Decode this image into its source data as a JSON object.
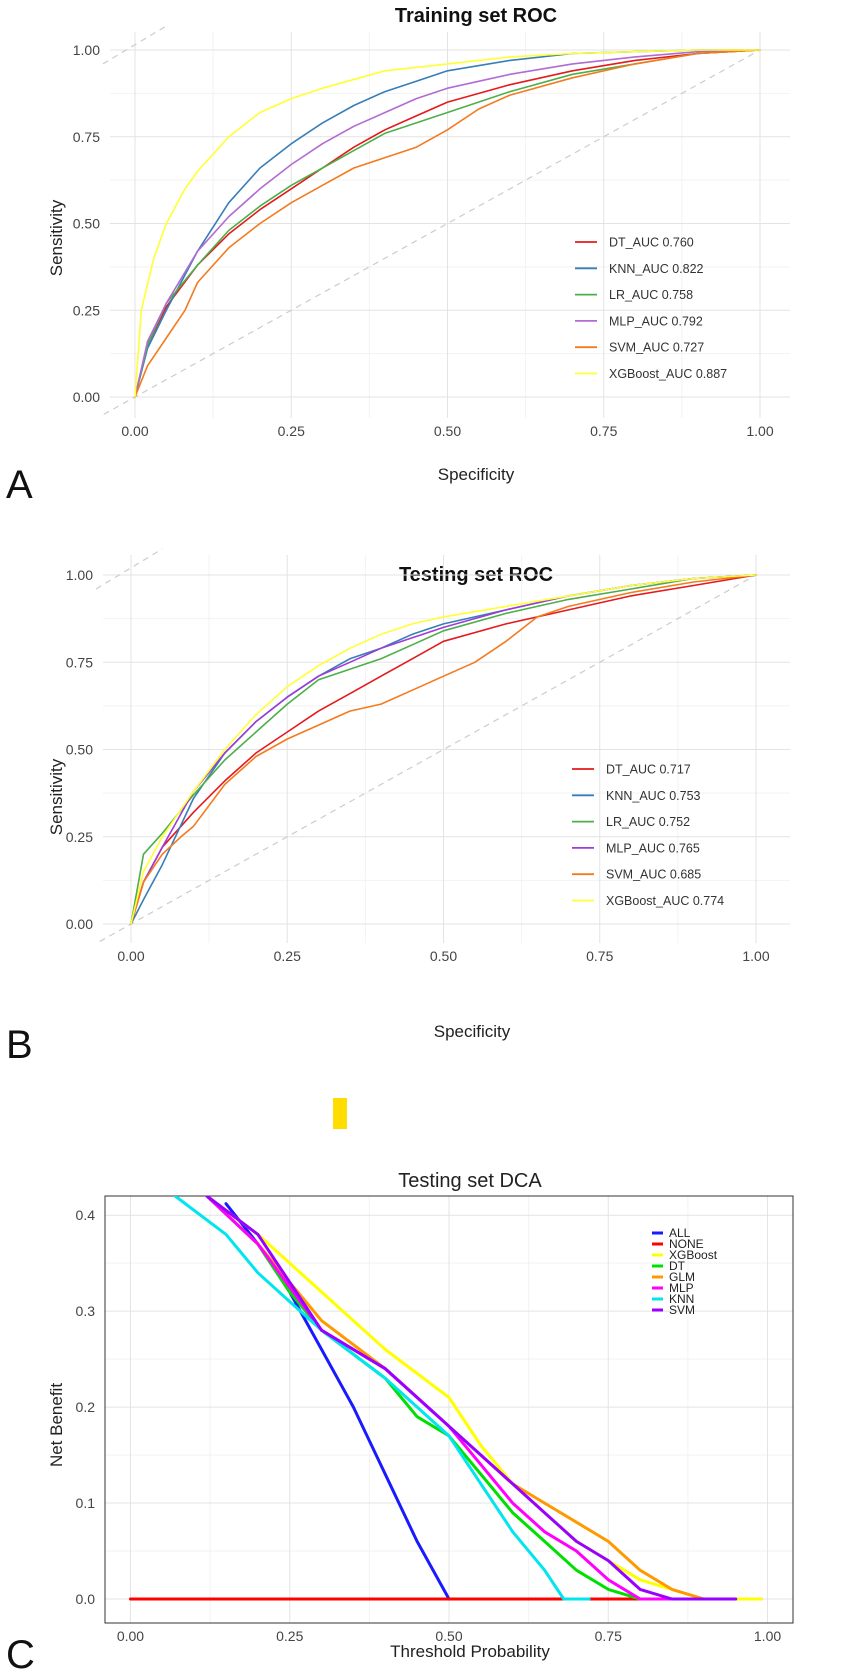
{
  "panels": [
    {
      "letter": "A"
    },
    {
      "letter": "B"
    },
    {
      "letter": "C"
    }
  ],
  "chart_data": [
    {
      "type": "line",
      "title": "Training set ROC",
      "xlabel": "Specificity",
      "ylabel": "Sensitivity",
      "xlim": [
        0,
        1
      ],
      "ylim": [
        0,
        1
      ],
      "xticks": [
        "0.00",
        "0.25",
        "0.50",
        "0.75",
        "1.00"
      ],
      "yticks": [
        "0.00",
        "0.25",
        "0.50",
        "0.75",
        "1.00"
      ],
      "grid": true,
      "legend_position": "bottom-right",
      "diagonal": true,
      "series": [
        {
          "name": "DT_AUC 0.760",
          "color": "#e41a1c",
          "x": [
            0,
            0.02,
            0.05,
            0.1,
            0.15,
            0.2,
            0.25,
            0.3,
            0.35,
            0.4,
            0.45,
            0.5,
            0.6,
            0.7,
            0.8,
            0.9,
            1.0
          ],
          "y": [
            0,
            0.15,
            0.26,
            0.38,
            0.47,
            0.54,
            0.6,
            0.66,
            0.72,
            0.77,
            0.81,
            0.85,
            0.9,
            0.94,
            0.97,
            0.99,
            1.0
          ]
        },
        {
          "name": "KNN_AUC 0.822",
          "color": "#377eb8",
          "x": [
            0,
            0.02,
            0.05,
            0.1,
            0.15,
            0.2,
            0.25,
            0.3,
            0.35,
            0.4,
            0.45,
            0.5,
            0.6,
            0.7,
            0.8,
            0.9,
            1.0
          ],
          "y": [
            0,
            0.14,
            0.25,
            0.42,
            0.56,
            0.66,
            0.73,
            0.79,
            0.84,
            0.88,
            0.91,
            0.94,
            0.97,
            0.99,
            0.995,
            1.0,
            1.0
          ]
        },
        {
          "name": "LR_AUC 0.758",
          "color": "#4daf4a",
          "x": [
            0,
            0.02,
            0.05,
            0.1,
            0.15,
            0.2,
            0.25,
            0.3,
            0.35,
            0.4,
            0.45,
            0.5,
            0.6,
            0.7,
            0.8,
            0.9,
            1.0
          ],
          "y": [
            0,
            0.15,
            0.27,
            0.38,
            0.48,
            0.55,
            0.61,
            0.66,
            0.71,
            0.76,
            0.79,
            0.82,
            0.88,
            0.93,
            0.96,
            0.99,
            1.0
          ]
        },
        {
          "name": "MLP_AUC 0.792",
          "color": "#b26bd1",
          "x": [
            0,
            0.02,
            0.05,
            0.1,
            0.15,
            0.2,
            0.25,
            0.3,
            0.35,
            0.4,
            0.45,
            0.5,
            0.6,
            0.7,
            0.8,
            0.9,
            1.0
          ],
          "y": [
            0,
            0.16,
            0.27,
            0.42,
            0.52,
            0.6,
            0.67,
            0.73,
            0.78,
            0.82,
            0.86,
            0.89,
            0.93,
            0.96,
            0.98,
            0.995,
            1.0
          ]
        },
        {
          "name": "SVM_AUC 0.727",
          "color": "#f47a1f",
          "x": [
            0,
            0.02,
            0.05,
            0.08,
            0.1,
            0.15,
            0.2,
            0.25,
            0.3,
            0.35,
            0.4,
            0.45,
            0.5,
            0.55,
            0.6,
            0.7,
            0.8,
            0.9,
            1.0
          ],
          "y": [
            0,
            0.09,
            0.17,
            0.25,
            0.33,
            0.43,
            0.5,
            0.56,
            0.61,
            0.66,
            0.69,
            0.72,
            0.77,
            0.83,
            0.87,
            0.92,
            0.96,
            0.99,
            1.0
          ]
        },
        {
          "name": "XGBoost_AUC 0.887",
          "color": "#ffff33",
          "x": [
            0,
            0.01,
            0.03,
            0.05,
            0.08,
            0.1,
            0.15,
            0.2,
            0.25,
            0.3,
            0.4,
            0.5,
            0.6,
            0.7,
            0.8,
            0.9,
            1.0
          ],
          "y": [
            0,
            0.25,
            0.4,
            0.5,
            0.6,
            0.65,
            0.75,
            0.82,
            0.86,
            0.89,
            0.94,
            0.96,
            0.98,
            0.99,
            0.995,
            1.0,
            1.0
          ]
        }
      ]
    },
    {
      "type": "line",
      "title": "Testing set ROC",
      "xlabel": "Specificity",
      "ylabel": "Sensitivity",
      "xlim": [
        0,
        1
      ],
      "ylim": [
        0,
        1
      ],
      "xticks": [
        "0.00",
        "0.25",
        "0.50",
        "0.75",
        "1.00"
      ],
      "yticks": [
        "0.00",
        "0.25",
        "0.50",
        "0.75",
        "1.00"
      ],
      "grid": true,
      "legend_position": "bottom-right",
      "diagonal": true,
      "series": [
        {
          "name": "DT_AUC 0.717",
          "color": "#e41a1c",
          "x": [
            0,
            0.02,
            0.05,
            0.1,
            0.15,
            0.2,
            0.25,
            0.3,
            0.35,
            0.4,
            0.45,
            0.5,
            0.6,
            0.7,
            0.8,
            0.9,
            1.0
          ],
          "y": [
            0,
            0.12,
            0.22,
            0.32,
            0.41,
            0.49,
            0.55,
            0.61,
            0.66,
            0.71,
            0.76,
            0.81,
            0.86,
            0.9,
            0.94,
            0.97,
            1.0
          ]
        },
        {
          "name": "KNN_AUC 0.753",
          "color": "#377eb8",
          "x": [
            0,
            0.02,
            0.05,
            0.1,
            0.15,
            0.2,
            0.25,
            0.3,
            0.35,
            0.4,
            0.45,
            0.5,
            0.6,
            0.7,
            0.8,
            0.9,
            1.0
          ],
          "y": [
            0,
            0.07,
            0.17,
            0.36,
            0.49,
            0.58,
            0.65,
            0.71,
            0.76,
            0.79,
            0.83,
            0.86,
            0.9,
            0.94,
            0.97,
            0.99,
            1.0
          ]
        },
        {
          "name": "LR_AUC 0.752",
          "color": "#4daf4a",
          "x": [
            0,
            0.02,
            0.05,
            0.1,
            0.15,
            0.2,
            0.25,
            0.3,
            0.35,
            0.4,
            0.45,
            0.5,
            0.6,
            0.7,
            0.8,
            0.9,
            1.0
          ],
          "y": [
            0,
            0.2,
            0.26,
            0.37,
            0.47,
            0.55,
            0.63,
            0.7,
            0.73,
            0.76,
            0.8,
            0.84,
            0.89,
            0.93,
            0.96,
            0.99,
            1.0
          ]
        },
        {
          "name": "MLP_AUC 0.765",
          "color": "#9d3cd6",
          "x": [
            0,
            0.02,
            0.05,
            0.1,
            0.15,
            0.2,
            0.25,
            0.3,
            0.35,
            0.4,
            0.45,
            0.5,
            0.6,
            0.7,
            0.8,
            0.9,
            1.0
          ],
          "y": [
            0,
            0.12,
            0.22,
            0.38,
            0.49,
            0.58,
            0.65,
            0.71,
            0.75,
            0.79,
            0.82,
            0.85,
            0.9,
            0.94,
            0.97,
            0.99,
            1.0
          ]
        },
        {
          "name": "SVM_AUC 0.685",
          "color": "#f47a1f",
          "x": [
            0,
            0.02,
            0.05,
            0.08,
            0.1,
            0.15,
            0.2,
            0.25,
            0.3,
            0.35,
            0.4,
            0.45,
            0.5,
            0.55,
            0.6,
            0.65,
            0.7,
            0.8,
            0.9,
            1.0
          ],
          "y": [
            0,
            0.12,
            0.2,
            0.25,
            0.28,
            0.4,
            0.48,
            0.53,
            0.57,
            0.61,
            0.63,
            0.67,
            0.71,
            0.75,
            0.81,
            0.88,
            0.91,
            0.95,
            0.98,
            1.0
          ]
        },
        {
          "name": "XGBoost_AUC 0.774",
          "color": "#ffff33",
          "x": [
            0,
            0.02,
            0.05,
            0.1,
            0.15,
            0.2,
            0.25,
            0.3,
            0.35,
            0.4,
            0.45,
            0.5,
            0.6,
            0.7,
            0.8,
            0.9,
            1.0
          ],
          "y": [
            0,
            0.15,
            0.25,
            0.38,
            0.5,
            0.6,
            0.68,
            0.74,
            0.79,
            0.83,
            0.86,
            0.88,
            0.91,
            0.94,
            0.97,
            0.99,
            1.0
          ]
        }
      ]
    },
    {
      "type": "line",
      "title": "Testing set DCA",
      "xlabel": "Threshold Probability",
      "ylabel": "Net Benefit",
      "xlim": [
        -0.04,
        1.04
      ],
      "ylim": [
        -0.025,
        0.42
      ],
      "xticks": [
        "0.00",
        "0.25",
        "0.50",
        "0.75",
        "1.00"
      ],
      "yticks": [
        "0.0",
        "0.1",
        "0.2",
        "0.3",
        "0.4"
      ],
      "grid": true,
      "legend_position": "top-right",
      "series": [
        {
          "name": "ALL",
          "color": "#1a1aff",
          "x": [
            0.15,
            0.2,
            0.25,
            0.3,
            0.35,
            0.4,
            0.45,
            0.5
          ],
          "y": [
            0.412,
            0.37,
            0.32,
            0.26,
            0.2,
            0.13,
            0.06,
            0
          ]
        },
        {
          "name": "NONE",
          "color": "#ff0000",
          "x": [
            0,
            0.99
          ],
          "y": [
            0,
            0
          ]
        },
        {
          "name": "XGBoost",
          "color": "#ffff00",
          "x": [
            0.12,
            0.2,
            0.3,
            0.4,
            0.5,
            0.55,
            0.6,
            0.65,
            0.7,
            0.75,
            0.8,
            0.85,
            0.9,
            0.95,
            0.99
          ],
          "y": [
            0.42,
            0.38,
            0.32,
            0.26,
            0.21,
            0.16,
            0.12,
            0.09,
            0.06,
            0.04,
            0.02,
            0.01,
            0.0,
            0.0,
            0.0
          ]
        },
        {
          "name": "DT",
          "color": "#00e000",
          "x": [
            0.12,
            0.2,
            0.25,
            0.3,
            0.4,
            0.45,
            0.5,
            0.55,
            0.6,
            0.65,
            0.7,
            0.75,
            0.8,
            0.85,
            0.9,
            0.95
          ],
          "y": [
            0.42,
            0.37,
            0.32,
            0.28,
            0.23,
            0.19,
            0.17,
            0.13,
            0.09,
            0.06,
            0.03,
            0.01,
            0.0,
            0.0,
            0.0,
            0.0
          ]
        },
        {
          "name": "GLM",
          "color": "#ff9900",
          "x": [
            0.12,
            0.2,
            0.3,
            0.4,
            0.5,
            0.55,
            0.6,
            0.65,
            0.7,
            0.75,
            0.8,
            0.85,
            0.9,
            0.95
          ],
          "y": [
            0.42,
            0.37,
            0.29,
            0.24,
            0.18,
            0.15,
            0.12,
            0.1,
            0.08,
            0.06,
            0.03,
            0.01,
            0.0,
            0.0
          ]
        },
        {
          "name": "MLP",
          "color": "#ff00ff",
          "x": [
            0.12,
            0.2,
            0.3,
            0.4,
            0.5,
            0.55,
            0.6,
            0.65,
            0.7,
            0.75,
            0.8,
            0.85,
            0.9
          ],
          "y": [
            0.42,
            0.37,
            0.28,
            0.24,
            0.18,
            0.14,
            0.1,
            0.07,
            0.05,
            0.02,
            0.0,
            0.0,
            0.0
          ]
        },
        {
          "name": "KNN",
          "color": "#00e5ee",
          "x": [
            0.07,
            0.15,
            0.2,
            0.25,
            0.3,
            0.4,
            0.5,
            0.55,
            0.6,
            0.65,
            0.68,
            0.72
          ],
          "y": [
            0.42,
            0.38,
            0.34,
            0.31,
            0.28,
            0.23,
            0.17,
            0.12,
            0.07,
            0.03,
            0.0,
            0.0
          ]
        },
        {
          "name": "SVM",
          "color": "#9900ff",
          "x": [
            0.12,
            0.2,
            0.3,
            0.4,
            0.5,
            0.55,
            0.6,
            0.65,
            0.7,
            0.75,
            0.8,
            0.85,
            0.9,
            0.95
          ],
          "y": [
            0.42,
            0.38,
            0.28,
            0.24,
            0.18,
            0.15,
            0.12,
            0.09,
            0.06,
            0.04,
            0.01,
            0.0,
            0.0,
            0.0
          ]
        }
      ]
    }
  ],
  "decor": {
    "marker_color": "#ffdd00"
  }
}
